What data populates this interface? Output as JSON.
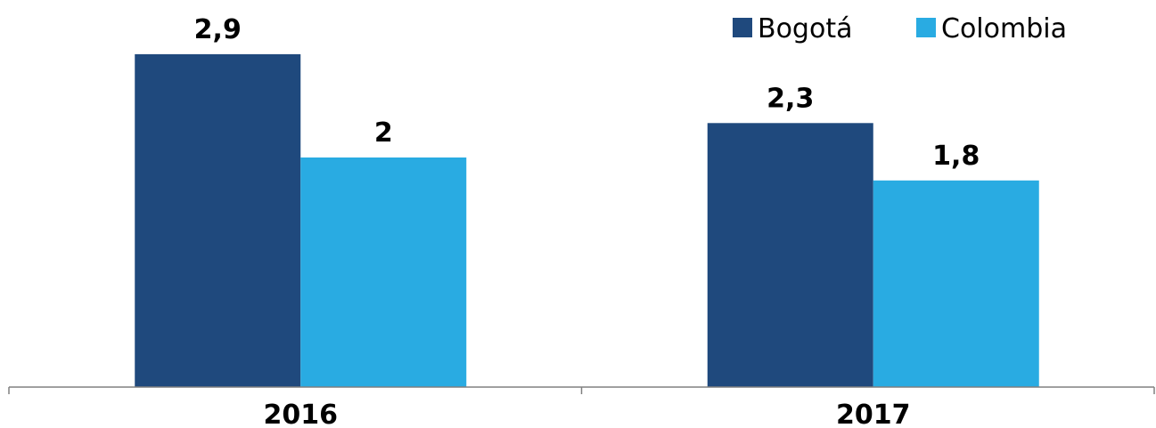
{
  "chart_data": {
    "type": "bar",
    "categories": [
      "2016",
      "2017"
    ],
    "series": [
      {
        "name": "Bogotá",
        "values": [
          2.9,
          2.3
        ],
        "labels": [
          "2,9",
          "2,3"
        ],
        "color": "#1f497d"
      },
      {
        "name": "Colombia",
        "values": [
          2.0,
          1.8
        ],
        "labels": [
          "2",
          "1,8"
        ],
        "color": "#29abe2"
      }
    ],
    "title": "",
    "xlabel": "",
    "ylabel": "",
    "ylim": [
      0,
      3.2
    ],
    "grid": false,
    "legend": "top-right",
    "axis_color": "#808080"
  }
}
